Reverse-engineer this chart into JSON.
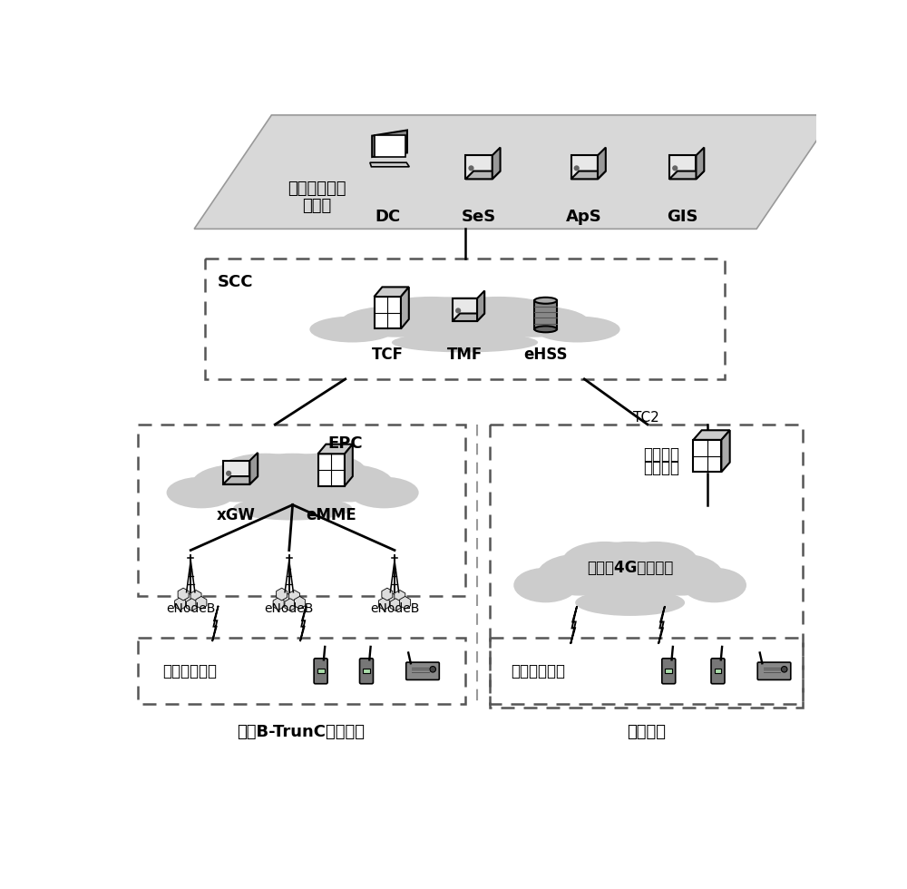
{
  "bg_color": "#ffffff",
  "top_platform_label_line1": "统一调度及应",
  "top_platform_label_line2": "用平台",
  "top_platform_items": [
    "DC",
    "SeS",
    "ApS",
    "GIS"
  ],
  "scc_label": "SCC",
  "scc_items": [
    "TCF",
    "TMF",
    "eHSS"
  ],
  "left_box_label": "EPC",
  "left_cloud_items": [
    "xGW",
    "eMME"
  ],
  "left_enodeb_labels": [
    "eNodeB",
    "eNodeB",
    "eNodeB"
  ],
  "left_terminal_label": "宽带集群终端",
  "left_bottom_label": "专网B-TrunC宽带集群",
  "right_box_label_line1": "公网集群",
  "right_box_label_line2": "控制中心",
  "right_cloud_label": "运营商4G移动网络",
  "right_terminal_label": "公网集群终端",
  "right_bottom_label": "公网集群",
  "tc2_label": "TC2",
  "cloud_color": "#cccccc",
  "platform_bg": "#d8d8d8",
  "dashed_color": "#555555",
  "line_color": "#000000"
}
